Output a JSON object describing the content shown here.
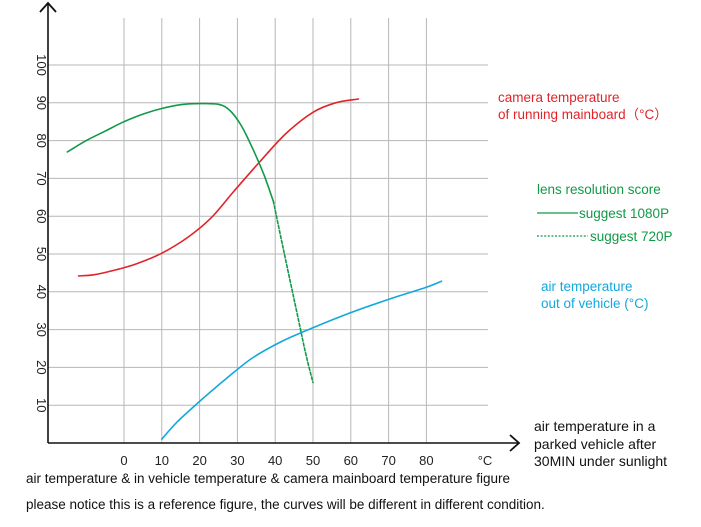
{
  "chart_data": {
    "type": "line",
    "title": "air temperature & in vehicle temperature & camera mainboard temperature figure",
    "xlabel": "air temperature in a parked vehicle after 30MIN under sunlight",
    "xlabel_lines": [
      "air temperature in a",
      "parked vehicle after",
      "30MIN under sunlight"
    ],
    "x_unit": "°C",
    "x_ticks": [
      0,
      10,
      20,
      30,
      40,
      50,
      60,
      70,
      80
    ],
    "y_ticks": [
      10,
      20,
      30,
      40,
      50,
      60,
      70,
      80,
      90,
      100
    ],
    "xlim": [
      -20,
      96
    ],
    "ylim": [
      0,
      110
    ],
    "grid": true,
    "series": [
      {
        "name": "camera temperature of running mainboard (°C)",
        "label_lines": [
          "camera temperature",
          "of running mainboard（°C）"
        ],
        "color": "#e0242a",
        "style": "solid",
        "x": [
          -12,
          -8,
          -3,
          3,
          10,
          17,
          23,
          29,
          36,
          43,
          50,
          56,
          62
        ],
        "y": [
          44.2,
          44.5,
          45.6,
          47.3,
          50.2,
          54.5,
          59.5,
          66.5,
          74.5,
          82,
          87.5,
          90,
          91
        ]
      },
      {
        "name": "lens resolution score - suggest 1080P",
        "color": "#109a48",
        "style": "solid",
        "x": [
          -15,
          -10,
          -5,
          0,
          5,
          10,
          15,
          20,
          25,
          28,
          31,
          34,
          37,
          39.5
        ],
        "y": [
          77,
          80,
          82.5,
          85,
          87,
          88.5,
          89.5,
          89.8,
          89.6,
          88,
          84,
          78,
          71,
          64
        ]
      },
      {
        "name": "lens resolution score - suggest 720P",
        "color": "#109a48",
        "style": "dashed",
        "x": [
          39.5,
          42,
          45,
          48,
          50
        ],
        "y": [
          64,
          52,
          38,
          24,
          16
        ]
      },
      {
        "name": "air temperature out of vehicle (°C)",
        "label_lines": [
          "air temperature",
          "out of vehicle      (°C)"
        ],
        "color": "#13a8dc",
        "style": "solid",
        "x": [
          10,
          14,
          20,
          27,
          34,
          42,
          50,
          60,
          70,
          80,
          84
        ],
        "y": [
          1,
          5.5,
          11,
          17,
          22.5,
          27,
          30.5,
          34.5,
          38,
          41.2,
          42.8
        ]
      }
    ],
    "legend": {
      "title": "lens resolution score",
      "entries": [
        "suggest 1080P",
        "suggest 720P"
      ]
    }
  },
  "caption_title": "air temperature & in vehicle temperature & camera mainboard temperature figure",
  "caption_note": "please notice this is a reference figure, the curves will be different in different condition."
}
